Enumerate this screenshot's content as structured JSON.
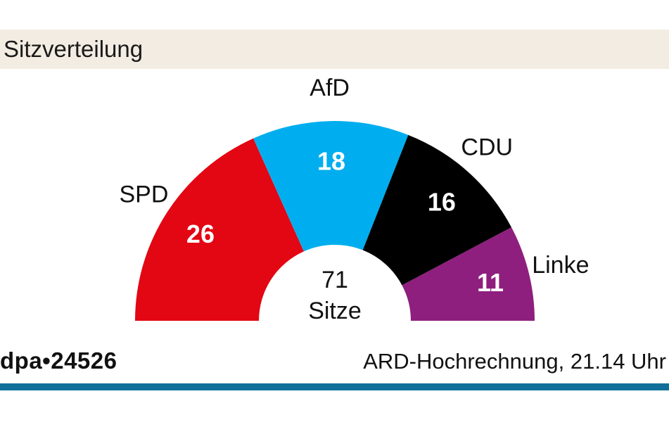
{
  "header": {
    "title": "Sitzverteilung"
  },
  "chart_data": {
    "type": "pie",
    "subtype": "semicircle-parliament",
    "title": "Sitzverteilung",
    "total_value": "71",
    "total_label": "Sitze",
    "series": [
      {
        "name": "SPD",
        "value": 26,
        "color": "#e30613"
      },
      {
        "name": "AfD",
        "value": 18,
        "color": "#00aeef"
      },
      {
        "name": "CDU",
        "value": 16,
        "color": "#000000"
      },
      {
        "name": "Linke",
        "value": 11,
        "color": "#8e1f7e"
      }
    ]
  },
  "footer": {
    "source": "dpa•24526",
    "note": "ARD-Hochrechnung, 21.14 Uhr"
  },
  "colors": {
    "title_bg": "#f3ece2",
    "rule": "#0f6f9a"
  }
}
